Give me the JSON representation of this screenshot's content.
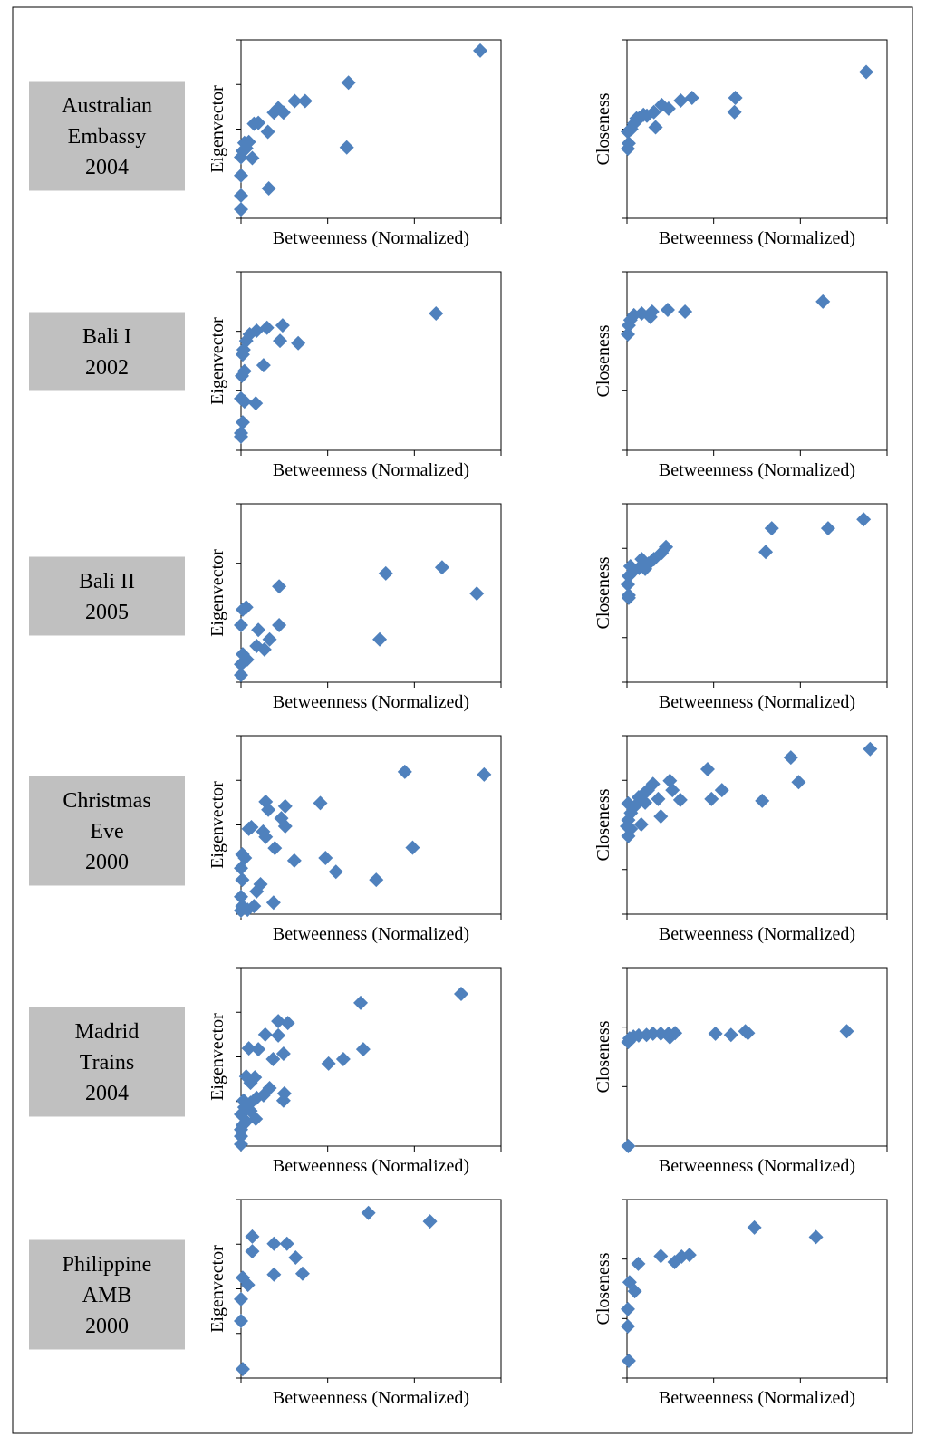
{
  "row_labels": [
    [
      "Australian",
      "Embassy",
      "2004"
    ],
    [
      "Bali I",
      "2002"
    ],
    [
      "Bali II",
      "2005"
    ],
    [
      "Christmas",
      "Eve",
      "2000"
    ],
    [
      "Madrid",
      "Trains",
      "2004"
    ],
    [
      "Philippine",
      "AMB",
      "2000"
    ]
  ],
  "chart_data": [
    {
      "type": "scatter",
      "x_label": "Betweenness (Normalized)",
      "y_label": "Eigenvector",
      "color": "#4f81bd",
      "xlim": [
        0,
        3
      ],
      "xticks": [
        0,
        1,
        2,
        3
      ],
      "ylim": [
        0,
        4
      ],
      "yticks": [
        0,
        1,
        2,
        3,
        4
      ],
      "x": [
        2.76,
        1.24,
        1.22,
        0.74,
        0.62,
        0.49,
        0.43,
        0.38,
        0.31,
        0.32,
        0.2,
        0.15,
        0.09,
        0.04,
        0.02,
        0.13,
        0,
        0,
        0,
        0,
        0.06
      ],
      "y": [
        3.76,
        3.04,
        1.59,
        2.63,
        2.63,
        2.37,
        2.47,
        2.37,
        1.94,
        0.67,
        2.14,
        2.12,
        1.71,
        1.69,
        1.51,
        1.35,
        1.37,
        0.96,
        0.51,
        0.2,
        1.57
      ]
    },
    {
      "type": "scatter",
      "x_label": "Betweenness (Normalized)",
      "y_label": "Closeness",
      "color": "#4f81bd",
      "xlim": [
        0,
        3
      ],
      "xticks": [
        0,
        1,
        2,
        3
      ],
      "ylim": [
        0,
        2
      ],
      "yticks": [
        0,
        1,
        2
      ],
      "x": [
        2.76,
        1.25,
        1.24,
        0.75,
        0.62,
        0.48,
        0.4,
        0.33,
        0.31,
        0.23,
        0.19,
        0.14,
        0.08,
        0.05,
        0.01,
        0.02,
        0.01,
        0.11
      ],
      "y": [
        1.64,
        1.35,
        1.19,
        1.35,
        1.32,
        1.23,
        1.27,
        1.02,
        1.19,
        1.15,
        1.16,
        1.12,
        1.06,
        1.0,
        0.97,
        0.84,
        0.78,
        1.12
      ]
    },
    {
      "type": "scatter",
      "x_label": "Betweenness (Normalized)",
      "y_label": "Eigenvector",
      "color": "#4f81bd",
      "xlim": [
        0,
        3
      ],
      "xticks": [
        0,
        1,
        2,
        3
      ],
      "ylim": [
        0,
        3
      ],
      "yticks": [
        0,
        1,
        2,
        3
      ],
      "x": [
        2.25,
        0.48,
        0.66,
        0.45,
        0.3,
        0.18,
        0.1,
        0.06,
        0.03,
        0.02,
        0.26,
        0.04,
        0.01,
        0,
        0.04,
        0.17,
        0.02,
        0,
        0
      ],
      "y": [
        2.3,
        2.1,
        1.8,
        1.84,
        2.06,
        2.01,
        1.95,
        1.84,
        1.69,
        1.61,
        1.43,
        1.33,
        1.25,
        0.87,
        0.82,
        0.79,
        0.47,
        0.29,
        0.23
      ]
    },
    {
      "type": "scatter",
      "x_label": "Betweenness (Normalized)",
      "y_label": "Closeness",
      "color": "#4f81bd",
      "xlim": [
        0,
        3
      ],
      "xticks": [
        0,
        1,
        2,
        3
      ],
      "ylim": [
        0,
        3
      ],
      "yticks": [
        0,
        1,
        2,
        3
      ],
      "x": [
        2.26,
        0.67,
        0.47,
        0.29,
        0.27,
        0.17,
        0.08,
        0.04,
        0.02,
        0.01
      ],
      "y": [
        2.5,
        2.33,
        2.36,
        2.33,
        2.24,
        2.3,
        2.27,
        2.19,
        2.1,
        1.95
      ]
    },
    {
      "type": "scatter",
      "x_label": "Betweenness (Normalized)",
      "y_label": "Eigenvector",
      "color": "#4f81bd",
      "xlim": [
        0,
        3
      ],
      "xticks": [
        0,
        1,
        2,
        3
      ],
      "ylim": [
        0,
        3
      ],
      "yticks": [
        0,
        1,
        2,
        3
      ],
      "x": [
        2.32,
        1.67,
        2.72,
        0.44,
        0.06,
        0.02,
        0,
        0.2,
        0.44,
        0.33,
        0.18,
        0.27,
        1.6,
        0.02,
        0,
        0,
        0.07
      ],
      "y": [
        1.93,
        1.83,
        1.49,
        1.61,
        1.26,
        1.22,
        0.96,
        0.88,
        0.96,
        0.72,
        0.61,
        0.55,
        0.72,
        0.47,
        0.3,
        0.12,
        0.38
      ]
    },
    {
      "type": "scatter",
      "x_label": "Betweenness (Normalized)",
      "y_label": "Closeness",
      "color": "#4f81bd",
      "xlim": [
        0,
        3
      ],
      "xticks": [
        0,
        1,
        2,
        3
      ],
      "ylim": [
        0,
        4
      ],
      "yticks": [
        0,
        1,
        2,
        3,
        4
      ],
      "x": [
        2.73,
        2.32,
        1.67,
        1.6,
        0.45,
        0.4,
        0.31,
        0.25,
        0.17,
        0.14,
        0.08,
        0.04,
        0.02,
        0.01,
        0.02,
        0.02,
        0.21
      ],
      "y": [
        3.65,
        3.45,
        3.45,
        2.92,
        3.03,
        2.9,
        2.76,
        2.66,
        2.76,
        2.56,
        2.5,
        2.6,
        2.38,
        2.19,
        1.95,
        1.89,
        2.54
      ]
    },
    {
      "type": "scatter",
      "x_label": "Betweenness (Normalized)",
      "y_label": "Eigenvector",
      "color": "#4f81bd",
      "xlim": [
        0,
        2
      ],
      "xticks": [
        0,
        1,
        2
      ],
      "ylim": [
        0,
        4
      ],
      "yticks": [
        0,
        1,
        2,
        3,
        4
      ],
      "x": [
        1.87,
        1.26,
        1.32,
        0.61,
        0.19,
        0.34,
        0.21,
        0.31,
        0.34,
        0.08,
        0.06,
        0.17,
        0.19,
        0.26,
        0.41,
        0.65,
        0.73,
        1.04,
        0.01,
        0.03,
        0,
        0.01,
        0.15,
        0.12,
        0,
        0.25,
        0.01,
        0.1,
        0,
        0.05
      ],
      "y": [
        3.13,
        3.19,
        1.49,
        2.49,
        2.52,
        2.42,
        2.34,
        2.15,
        1.97,
        1.95,
        1.91,
        1.85,
        1.73,
        1.48,
        1.2,
        1.26,
        0.95,
        0.77,
        1.34,
        1.26,
        1.03,
        0.77,
        0.67,
        0.51,
        0.39,
        0.26,
        0.18,
        0.18,
        0.08,
        0.1
      ]
    },
    {
      "type": "scatter",
      "x_label": "Betweenness (Normalized)",
      "y_label": "Closeness",
      "color": "#4f81bd",
      "xlim": [
        0,
        2
      ],
      "xticks": [
        0,
        1,
        2
      ],
      "ylim": [
        0,
        4
      ],
      "yticks": [
        0,
        1,
        2,
        3,
        4
      ],
      "x": [
        1.87,
        1.26,
        0.62,
        1.32,
        0.73,
        0.33,
        0.35,
        0.41,
        0.2,
        0.16,
        0.13,
        0.09,
        0.24,
        0.14,
        0.06,
        0.01,
        0.03,
        0.01,
        0,
        0.11,
        0.26,
        0.03,
        0.01,
        0.65,
        1.04
      ],
      "y": [
        3.7,
        3.51,
        3.25,
        2.96,
        2.78,
        2.99,
        2.78,
        2.56,
        2.92,
        2.78,
        2.7,
        2.62,
        2.58,
        2.5,
        2.42,
        2.48,
        2.27,
        2.11,
        1.97,
        2.01,
        2.19,
        1.91,
        1.75,
        2.58,
        2.54
      ]
    },
    {
      "type": "scatter",
      "x_label": "Betweenness (Normalized)",
      "y_label": "Eigenvector",
      "color": "#4f81bd",
      "xlim": [
        0,
        3
      ],
      "xticks": [
        0,
        1,
        2,
        3
      ],
      "ylim": [
        0,
        4
      ],
      "yticks": [
        0,
        1,
        2,
        3,
        4
      ],
      "x": [
        2.54,
        1.38,
        0.54,
        0.43,
        0.28,
        0.43,
        0.09,
        0.2,
        1.41,
        1.18,
        1.01,
        0.37,
        0.49,
        0.06,
        0.16,
        0.11,
        0.33,
        0.5,
        0.26,
        0.18,
        0.49,
        0.03,
        0.11,
        0.17,
        0,
        0.06,
        0,
        0,
        0,
        0.04,
        0.02,
        0.11
      ],
      "y": [
        3.41,
        3.21,
        2.76,
        2.8,
        2.5,
        2.48,
        2.19,
        2.17,
        2.17,
        1.95,
        1.85,
        1.95,
        2.07,
        1.56,
        1.54,
        1.42,
        1.3,
        1.18,
        1.14,
        1.08,
        1.02,
        1.02,
        0.97,
        0.61,
        0.71,
        0.55,
        0.37,
        0.22,
        0.04,
        0.87,
        0.47,
        0.79
      ]
    },
    {
      "type": "scatter",
      "x_label": "Betweenness (Normalized)",
      "y_label": "Closeness",
      "color": "#4f81bd",
      "xlim": [
        0,
        2
      ],
      "xticks": [
        0,
        1,
        2
      ],
      "ylim": [
        0,
        3
      ],
      "yticks": [
        0,
        1,
        2,
        3
      ],
      "x": [
        1.69,
        0.93,
        0.91,
        0.8,
        0.68,
        0.37,
        0.32,
        0.33,
        0.26,
        0.2,
        0.15,
        0.09,
        0.05,
        0.02,
        0.01,
        0.01
      ],
      "y": [
        1.93,
        1.9,
        1.93,
        1.87,
        1.89,
        1.9,
        1.89,
        1.83,
        1.89,
        1.89,
        1.87,
        1.86,
        1.84,
        1.81,
        1.75,
        0
      ]
    },
    {
      "type": "scatter",
      "x_label": "Betweenness (Normalized)",
      "y_label": "Eigenvector",
      "color": "#4f81bd",
      "xlim": [
        0,
        3
      ],
      "xticks": [
        0,
        1,
        2,
        3
      ],
      "ylim": [
        0,
        4
      ],
      "yticks": [
        0,
        1,
        2,
        3,
        4
      ],
      "x": [
        1.47,
        2.18,
        0.13,
        0.13,
        0.38,
        0.53,
        0.63,
        0.71,
        0.38,
        0.02,
        0.08,
        0,
        0,
        0.02
      ],
      "y": [
        3.7,
        3.51,
        3.17,
        2.84,
        3.01,
        3.01,
        2.7,
        2.34,
        2.32,
        2.25,
        2.09,
        1.77,
        1.28,
        0.2
      ]
    },
    {
      "type": "scatter",
      "x_label": "Betweenness (Normalized)",
      "y_label": "Closeness",
      "color": "#4f81bd",
      "xlim": [
        0,
        3
      ],
      "xticks": [
        0,
        1,
        2,
        3
      ],
      "ylim": [
        0,
        3
      ],
      "yticks": [
        0,
        1,
        2,
        3
      ],
      "x": [
        1.47,
        2.18,
        0.72,
        0.63,
        0.55,
        0.39,
        0.13,
        0.03,
        0.09,
        0.01,
        0.01,
        0.02
      ],
      "y": [
        2.53,
        2.37,
        2.07,
        2.04,
        1.95,
        2.05,
        1.92,
        1.61,
        1.46,
        1.16,
        0.87,
        0.29
      ]
    }
  ]
}
